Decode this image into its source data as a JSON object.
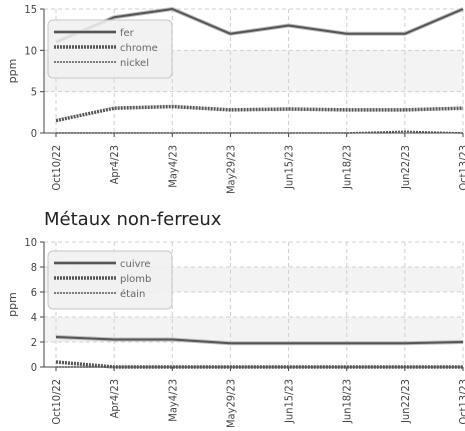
{
  "chart_data": [
    {
      "type": "line",
      "title": "",
      "ylabel": "ppm",
      "xlabel": "",
      "categories": [
        "Oct10/22",
        "Apr4/23",
        "May4/23",
        "May29/23",
        "Jun15/23",
        "Jun18/23",
        "Jun22/23",
        "Oct13/23"
      ],
      "ylim": [
        0,
        15
      ],
      "yticks": [
        0,
        5,
        10,
        15
      ],
      "grid": true,
      "legend_position": "top-left",
      "series": [
        {
          "name": "fer",
          "values": [
            11,
            14,
            15,
            12,
            13,
            12,
            12,
            15
          ],
          "color": "#555555",
          "style": "solid-double"
        },
        {
          "name": "chrome",
          "values": [
            1.5,
            3,
            3.2,
            2.8,
            2.9,
            2.8,
            2.8,
            3
          ],
          "color": "#555555",
          "style": "dotted-thick"
        },
        {
          "name": "nickel",
          "values": [
            0,
            0,
            0,
            0,
            0,
            0,
            0.2,
            0
          ],
          "color": "#555555",
          "style": "dotted-thin"
        }
      ]
    },
    {
      "type": "line",
      "title": "Métaux non-ferreux",
      "ylabel": "ppm",
      "xlabel": "",
      "categories": [
        "Oct10/22",
        "Apr4/23",
        "May4/23",
        "May29/23",
        "Jun15/23",
        "Jun18/23",
        "Jun22/23",
        "Oct13/23"
      ],
      "ylim": [
        0,
        10
      ],
      "yticks": [
        0,
        2,
        4,
        6,
        8,
        10
      ],
      "grid": true,
      "legend_position": "top-left",
      "series": [
        {
          "name": "cuivre",
          "values": [
            2.4,
            2.2,
            2.2,
            1.9,
            1.9,
            1.9,
            1.9,
            2.0
          ],
          "color": "#555555",
          "style": "solid-double"
        },
        {
          "name": "plomb",
          "values": [
            0.4,
            0,
            0,
            0,
            0,
            0,
            0,
            0
          ],
          "color": "#555555",
          "style": "dotted-thick"
        },
        {
          "name": "étain",
          "values": [
            0,
            0,
            0,
            0,
            0,
            0,
            0,
            0
          ],
          "color": "#555555",
          "style": "dotted-thin"
        }
      ]
    }
  ]
}
